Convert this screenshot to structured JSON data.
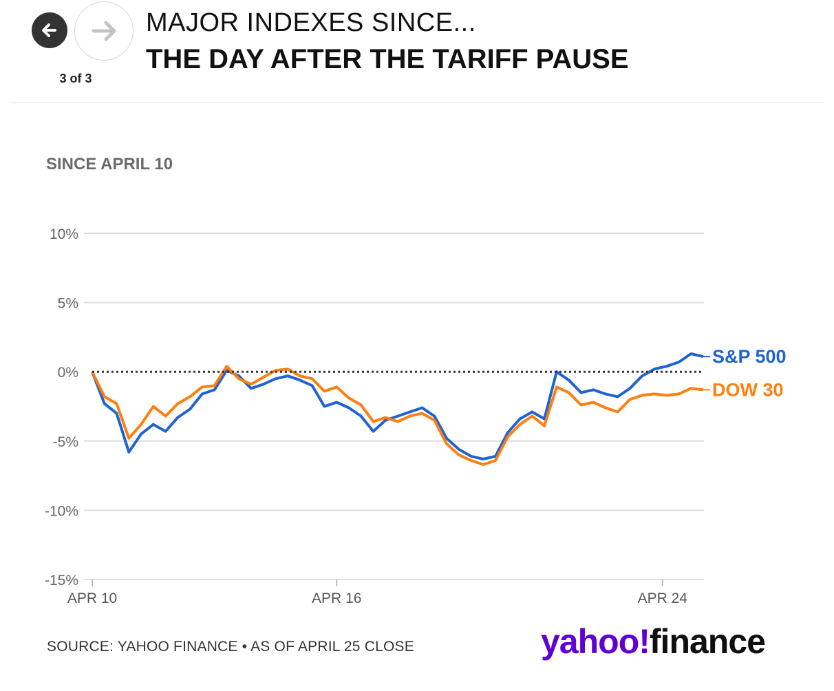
{
  "nav": {
    "counter": "3 of 3",
    "back_icon": "arrow-left-icon",
    "forward_icon": "arrow-right-icon"
  },
  "header": {
    "title_top": "MAJOR INDEXES SINCE...",
    "title_main": "THE DAY AFTER THE TARIFF PAUSE"
  },
  "subtitle": "SINCE APRIL 10",
  "footer": {
    "source": "SOURCE: YAHOO FINANCE • AS OF APRIL 25 CLOSE",
    "logo_yahoo": "yahoo",
    "logo_mark": "!",
    "logo_finance": "finance"
  },
  "colors": {
    "sp500": "#1f63d2",
    "dow": "#ff7f0e",
    "grid": "#dddddd",
    "zero_line": "#333333",
    "logo_purple": "#6001d2"
  },
  "chart_data": {
    "type": "line",
    "title": "SINCE APRIL 10",
    "xlabel": "",
    "ylabel": "",
    "ylim": [
      -15,
      10
    ],
    "yticks": [
      10,
      5,
      0,
      -5,
      -10,
      -15
    ],
    "ytick_labels": [
      "10%",
      "5%",
      "0%",
      "-5%",
      "-10%",
      "-15%"
    ],
    "x_range": [
      "2025-04-10",
      "2025-04-25"
    ],
    "xticks": [
      "2025-04-10",
      "2025-04-16",
      "2025-04-24"
    ],
    "xtick_labels": [
      "APR 10",
      "APR 16",
      "APR 24"
    ],
    "grid": true,
    "reference_line": 0,
    "series": [
      {
        "name": "S&P 500",
        "color": "#1f63d2",
        "points": [
          [
            "2025-04-10",
            0.0
          ],
          [
            "2025-04-10",
            -2.3
          ],
          [
            "2025-04-10",
            -3.0
          ],
          [
            "2025-04-11",
            -5.8
          ],
          [
            "2025-04-11",
            -4.5
          ],
          [
            "2025-04-11",
            -3.8
          ],
          [
            "2025-04-11",
            -4.3
          ],
          [
            "2025-04-11",
            -3.3
          ],
          [
            "2025-04-12",
            -2.7
          ],
          [
            "2025-04-13",
            -1.6
          ],
          [
            "2025-04-13",
            -1.3
          ],
          [
            "2025-04-13",
            0.1
          ],
          [
            "2025-04-14",
            -0.3
          ],
          [
            "2025-04-14",
            -1.2
          ],
          [
            "2025-04-14",
            -0.9
          ],
          [
            "2025-04-14",
            -0.5
          ],
          [
            "2025-04-14",
            -0.3
          ],
          [
            "2025-04-15",
            -0.6
          ],
          [
            "2025-04-15",
            -1.0
          ],
          [
            "2025-04-16",
            -2.5
          ],
          [
            "2025-04-16",
            -2.2
          ],
          [
            "2025-04-16",
            -2.6
          ],
          [
            "2025-04-17",
            -3.2
          ],
          [
            "2025-04-17",
            -4.3
          ],
          [
            "2025-04-17",
            -3.5
          ],
          [
            "2025-04-17",
            -3.2
          ],
          [
            "2025-04-18",
            -2.9
          ],
          [
            "2025-04-18",
            -2.6
          ],
          [
            "2025-04-18",
            -3.2
          ],
          [
            "2025-04-19",
            -4.8
          ],
          [
            "2025-04-19",
            -5.6
          ],
          [
            "2025-04-19",
            -6.1
          ],
          [
            "2025-04-20",
            -6.3
          ],
          [
            "2025-04-20",
            -6.1
          ],
          [
            "2025-04-20",
            -4.4
          ],
          [
            "2025-04-20",
            -3.4
          ],
          [
            "2025-04-21",
            -2.9
          ],
          [
            "2025-04-21",
            -3.4
          ],
          [
            "2025-04-22",
            0.0
          ],
          [
            "2025-04-22",
            -0.6
          ],
          [
            "2025-04-22",
            -1.5
          ],
          [
            "2025-04-23",
            -1.3
          ],
          [
            "2025-04-23",
            -1.6
          ],
          [
            "2025-04-23",
            -1.8
          ],
          [
            "2025-04-24",
            -1.2
          ],
          [
            "2025-04-24",
            -0.3
          ],
          [
            "2025-04-24",
            0.2
          ],
          [
            "2025-04-25",
            0.4
          ],
          [
            "2025-04-25",
            0.7
          ],
          [
            "2025-04-25",
            1.3
          ],
          [
            "2025-04-25",
            1.1
          ]
        ]
      },
      {
        "name": "DOW 30",
        "color": "#ff7f0e",
        "points": [
          [
            "2025-04-10",
            0.0
          ],
          [
            "2025-04-10",
            -1.8
          ],
          [
            "2025-04-10",
            -2.3
          ],
          [
            "2025-04-11",
            -4.8
          ],
          [
            "2025-04-11",
            -3.8
          ],
          [
            "2025-04-11",
            -2.5
          ],
          [
            "2025-04-11",
            -3.2
          ],
          [
            "2025-04-11",
            -2.3
          ],
          [
            "2025-04-12",
            -1.8
          ],
          [
            "2025-04-13",
            -1.1
          ],
          [
            "2025-04-13",
            -1.0
          ],
          [
            "2025-04-13",
            0.4
          ],
          [
            "2025-04-14",
            -0.5
          ],
          [
            "2025-04-14",
            -0.9
          ],
          [
            "2025-04-14",
            -0.4
          ],
          [
            "2025-04-14",
            0.1
          ],
          [
            "2025-04-14",
            0.2
          ],
          [
            "2025-04-15",
            -0.3
          ],
          [
            "2025-04-15",
            -0.5
          ],
          [
            "2025-04-16",
            -1.4
          ],
          [
            "2025-04-16",
            -1.1
          ],
          [
            "2025-04-16",
            -1.9
          ],
          [
            "2025-04-17",
            -2.4
          ],
          [
            "2025-04-17",
            -3.6
          ],
          [
            "2025-04-17",
            -3.3
          ],
          [
            "2025-04-17",
            -3.6
          ],
          [
            "2025-04-18",
            -3.2
          ],
          [
            "2025-04-18",
            -3.0
          ],
          [
            "2025-04-18",
            -3.5
          ],
          [
            "2025-04-19",
            -5.2
          ],
          [
            "2025-04-19",
            -6.0
          ],
          [
            "2025-04-19",
            -6.4
          ],
          [
            "2025-04-20",
            -6.7
          ],
          [
            "2025-04-20",
            -6.4
          ],
          [
            "2025-04-20",
            -4.7
          ],
          [
            "2025-04-20",
            -3.8
          ],
          [
            "2025-04-21",
            -3.2
          ],
          [
            "2025-04-21",
            -3.9
          ],
          [
            "2025-04-22",
            -1.1
          ],
          [
            "2025-04-22",
            -1.5
          ],
          [
            "2025-04-22",
            -2.4
          ],
          [
            "2025-04-23",
            -2.2
          ],
          [
            "2025-04-23",
            -2.6
          ],
          [
            "2025-04-23",
            -2.9
          ],
          [
            "2025-04-24",
            -2.0
          ],
          [
            "2025-04-24",
            -1.7
          ],
          [
            "2025-04-24",
            -1.6
          ],
          [
            "2025-04-25",
            -1.7
          ],
          [
            "2025-04-25",
            -1.6
          ],
          [
            "2025-04-25",
            -1.2
          ],
          [
            "2025-04-25",
            -1.3
          ]
        ]
      }
    ]
  }
}
